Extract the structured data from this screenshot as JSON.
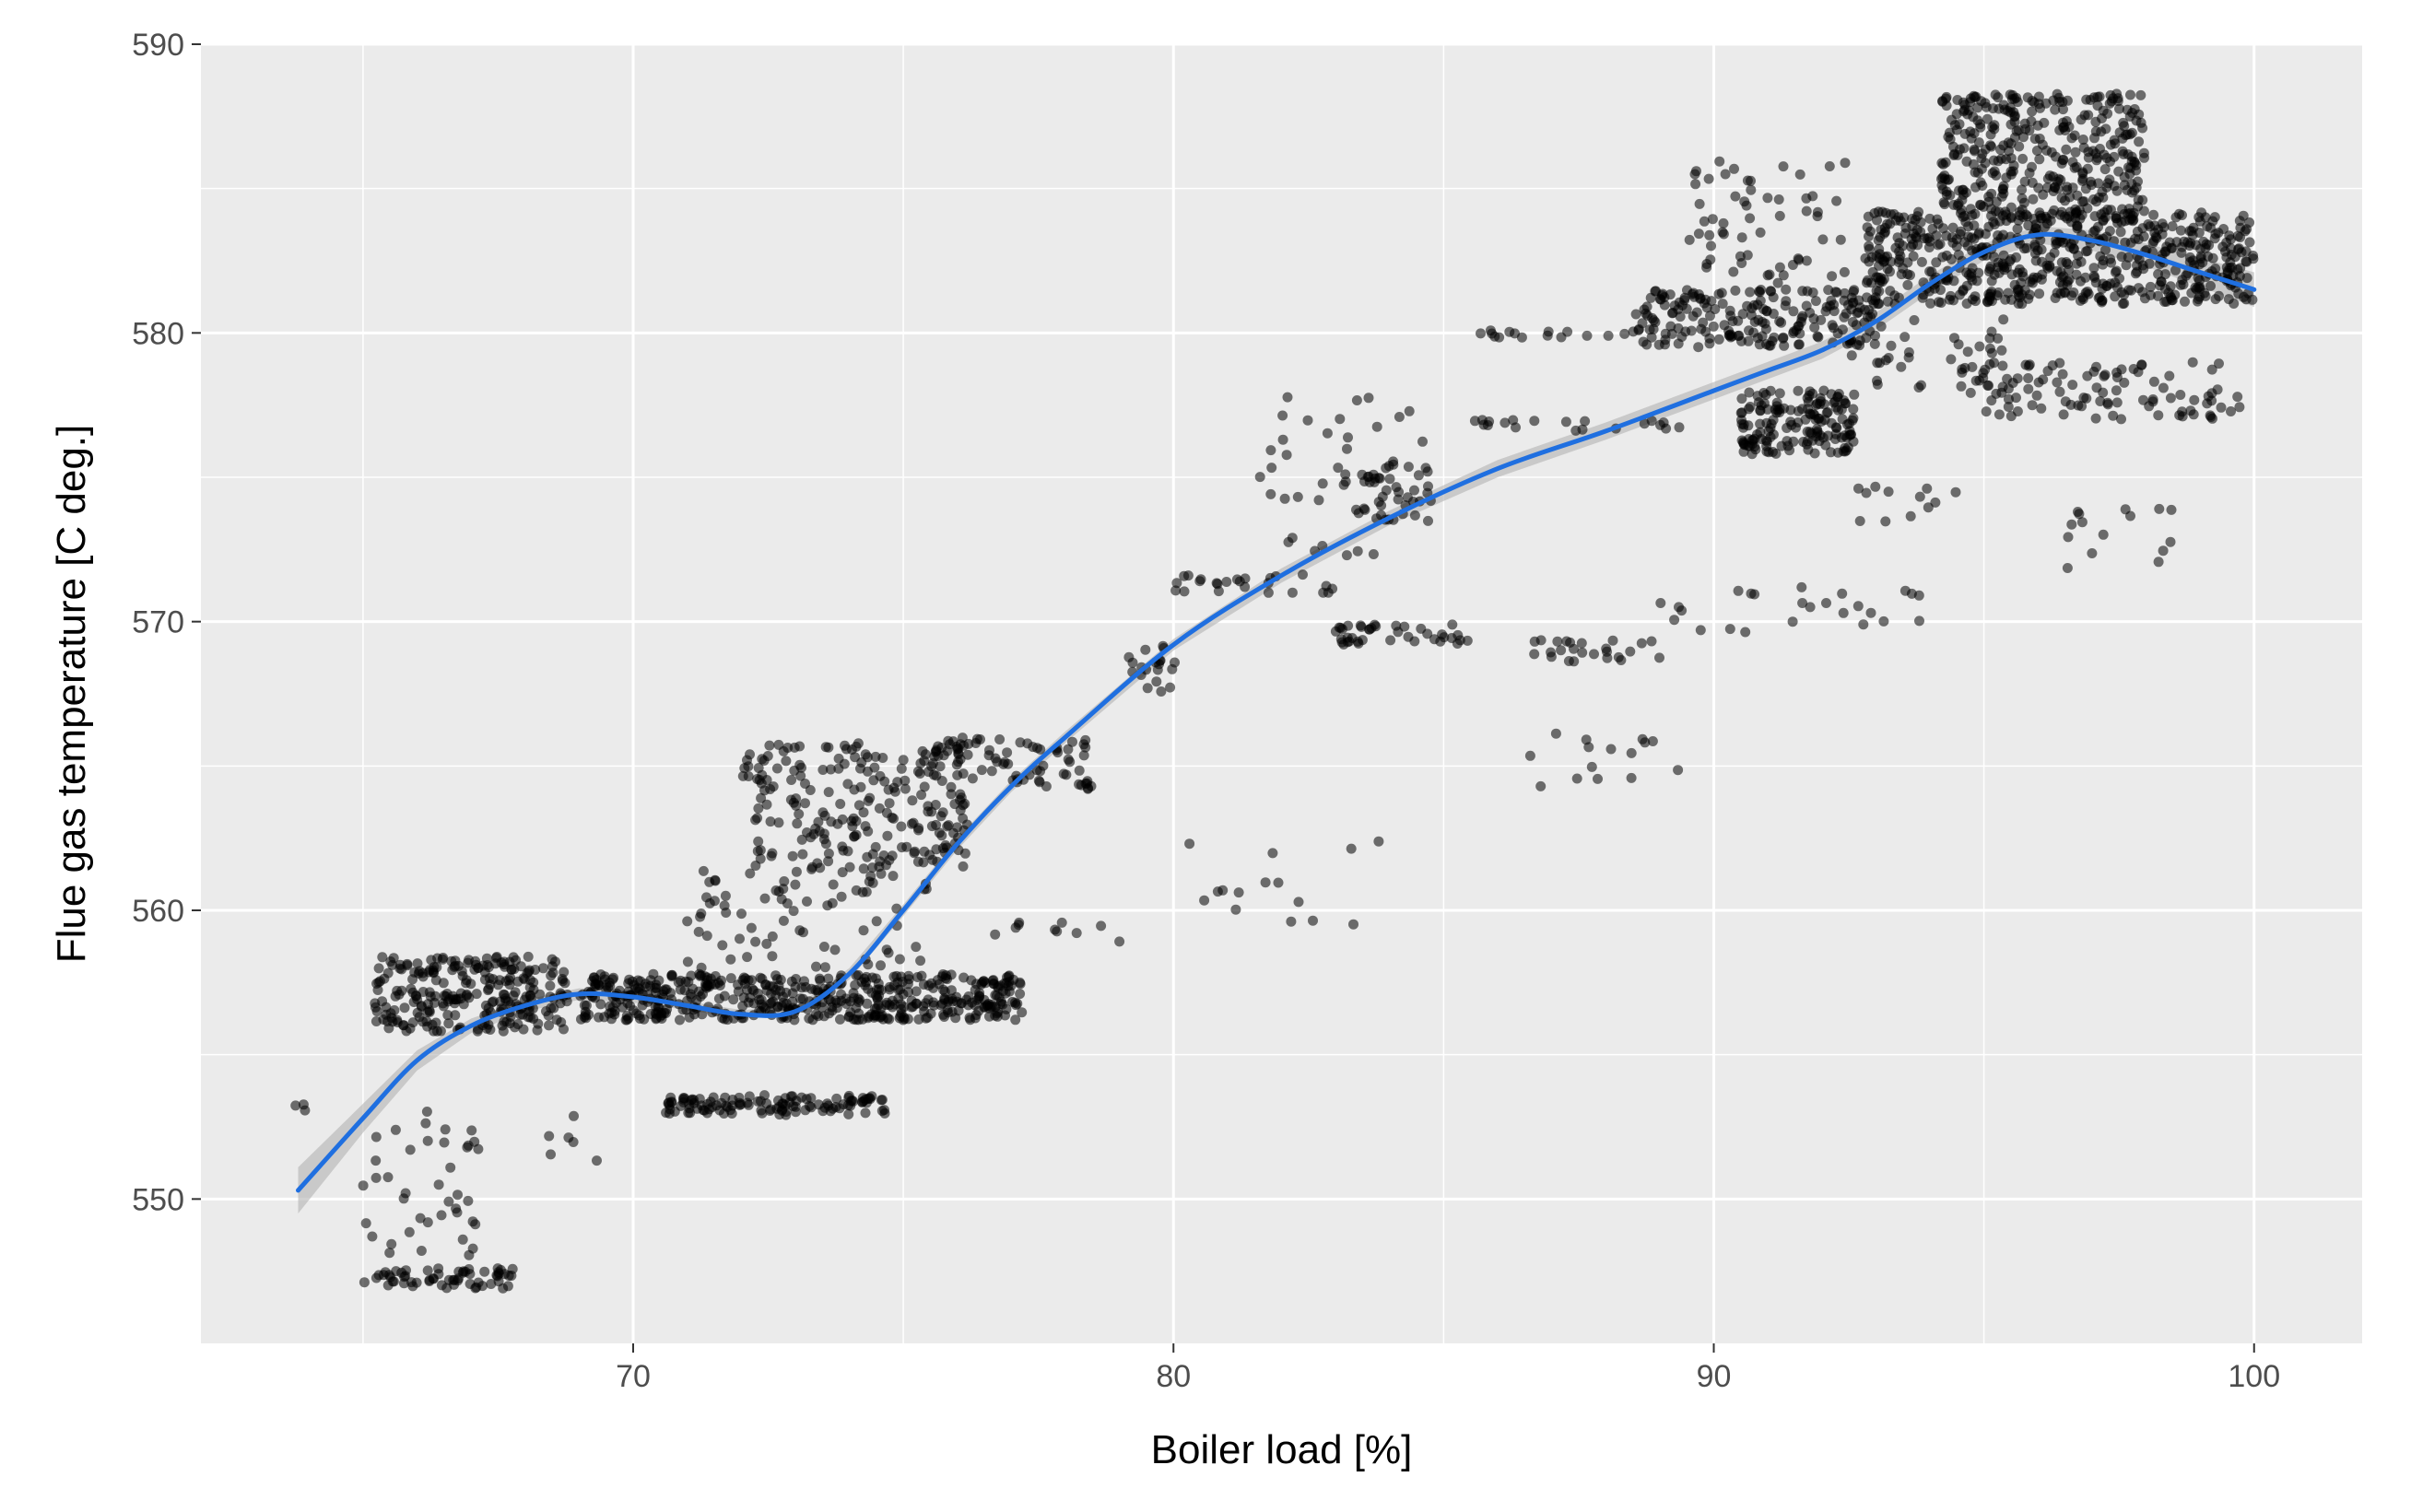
{
  "chart_data": {
    "type": "scatter",
    "xlabel": "Boiler load [%]",
    "ylabel": "Flue gas temperature [C deg.]",
    "xlim": [
      62,
      102
    ],
    "ylim": [
      545,
      590
    ],
    "x_ticks": [
      70,
      80,
      90,
      100
    ],
    "x_tick_labels": [
      "70",
      "80",
      "90",
      "100"
    ],
    "y_ticks": [
      550,
      560,
      570,
      580,
      590
    ],
    "y_tick_labels": [
      "550",
      "560",
      "570",
      "580",
      "590"
    ],
    "grid": true,
    "legend": "none",
    "colors": {
      "panel_background": "#ebebeb",
      "grid": "#ffffff",
      "points": "#000000",
      "smooth_line": "#1f6fe0",
      "confidence_band": "#b3b3b3"
    },
    "point_clusters": [
      {
        "x": [
          65.2,
          68.8
        ],
        "y": [
          555.8,
          558.4
        ],
        "n": 260
      },
      {
        "x": [
          65.0,
          67.8
        ],
        "y": [
          546.9,
          547.6
        ],
        "n": 60
      },
      {
        "x": [
          65.0,
          67.2
        ],
        "y": [
          548.0,
          553.2
        ],
        "n": 40
      },
      {
        "x": [
          63.6,
          64.2
        ],
        "y": [
          553.0,
          553.4
        ],
        "n": 3
      },
      {
        "x": [
          68.0,
          69.5
        ],
        "y": [
          551.0,
          553.0
        ],
        "n": 6
      },
      {
        "x": [
          69.0,
          77.2
        ],
        "y": [
          556.2,
          557.8
        ],
        "n": 520
      },
      {
        "x": [
          70.6,
          74.7
        ],
        "y": [
          552.9,
          553.6
        ],
        "n": 120
      },
      {
        "x": [
          71.0,
          75.5
        ],
        "y": [
          558.0,
          561.5
        ],
        "n": 80
      },
      {
        "x": [
          72.0,
          76.2
        ],
        "y": [
          561.5,
          565.8
        ],
        "n": 220
      },
      {
        "x": [
          75.5,
          78.5
        ],
        "y": [
          564.2,
          566.0
        ],
        "n": 70
      },
      {
        "x": [
          76.5,
          79.0
        ],
        "y": [
          558.8,
          559.6
        ],
        "n": 10
      },
      {
        "x": [
          79.0,
          80.2
        ],
        "y": [
          567.5,
          569.2
        ],
        "n": 20
      },
      {
        "x": [
          80.0,
          83.0
        ],
        "y": [
          571.0,
          571.8
        ],
        "n": 25
      },
      {
        "x": [
          81.5,
          84.8
        ],
        "y": [
          572.0,
          577.8
        ],
        "n": 40
      },
      {
        "x": [
          83.0,
          84.8
        ],
        "y": [
          573.5,
          575.5
        ],
        "n": 40
      },
      {
        "x": [
          83.0,
          85.5
        ],
        "y": [
          569.2,
          569.9
        ],
        "n": 40
      },
      {
        "x": [
          85.0,
          89.5
        ],
        "y": [
          576.6,
          577.0
        ],
        "n": 20
      },
      {
        "x": [
          85.5,
          88.5
        ],
        "y": [
          579.8,
          580.1
        ],
        "n": 15
      },
      {
        "x": [
          80.0,
          85.5
        ],
        "y": [
          559.5,
          562.5
        ],
        "n": 15
      },
      {
        "x": [
          86.5,
          89.5
        ],
        "y": [
          564.0,
          566.2
        ],
        "n": 15
      },
      {
        "x": [
          86.5,
          89.0
        ],
        "y": [
          568.6,
          569.4
        ],
        "n": 25
      },
      {
        "x": [
          89.0,
          94.0
        ],
        "y": [
          569.5,
          571.2
        ],
        "n": 25
      },
      {
        "x": [
          88.5,
          93.0
        ],
        "y": [
          579.5,
          581.5
        ],
        "n": 200
      },
      {
        "x": [
          89.5,
          92.5
        ],
        "y": [
          581.5,
          586.2
        ],
        "n": 60
      },
      {
        "x": [
          90.5,
          92.6
        ],
        "y": [
          575.8,
          578.0
        ],
        "n": 160
      },
      {
        "x": [
          92.5,
          95.5
        ],
        "y": [
          578.0,
          580.5
        ],
        "n": 40
      },
      {
        "x": [
          92.8,
          100.0
        ],
        "y": [
          581.0,
          584.2
        ],
        "n": 620
      },
      {
        "x": [
          94.2,
          98.0
        ],
        "y": [
          584.0,
          588.3
        ],
        "n": 360
      },
      {
        "x": [
          94.5,
          99.8
        ],
        "y": [
          577.0,
          579.0
        ],
        "n": 100
      },
      {
        "x": [
          92.5,
          94.5
        ],
        "y": [
          573.0,
          575.0
        ],
        "n": 12
      },
      {
        "x": [
          96.5,
          98.5
        ],
        "y": [
          571.5,
          574.8
        ],
        "n": 15
      }
    ],
    "smooth_line": {
      "x": [
        63.8,
        65.0,
        66.0,
        67.0,
        68.0,
        69.0,
        70.0,
        71.0,
        72.0,
        73.0,
        74.0,
        75.0,
        76.0,
        77.0,
        78.0,
        80.0,
        82.0,
        84.0,
        86.0,
        88.0,
        90.0,
        91.0,
        92.0,
        93.0,
        94.0,
        95.0,
        96.0,
        97.0,
        98.0,
        99.0,
        100.0
      ],
      "y": [
        550.3,
        552.8,
        554.8,
        556.0,
        556.7,
        557.1,
        557.0,
        556.7,
        556.4,
        556.5,
        557.8,
        560.0,
        562.3,
        564.3,
        566.0,
        569.2,
        571.6,
        573.6,
        575.3,
        576.6,
        578.0,
        578.7,
        579.4,
        580.4,
        581.7,
        582.8,
        583.4,
        583.2,
        582.7,
        582.1,
        581.5
      ]
    },
    "confidence_band_halfwidth": [
      0.8,
      0.5,
      0.35,
      0.25,
      0.2,
      0.2,
      0.2,
      0.15,
      0.15,
      0.15,
      0.2,
      0.2,
      0.2,
      0.2,
      0.2,
      0.2,
      0.25,
      0.25,
      0.3,
      0.3,
      0.3,
      0.3,
      0.3,
      0.3,
      0.3,
      0.3,
      0.3,
      0.35,
      0.4,
      0.5,
      0.6
    ]
  }
}
